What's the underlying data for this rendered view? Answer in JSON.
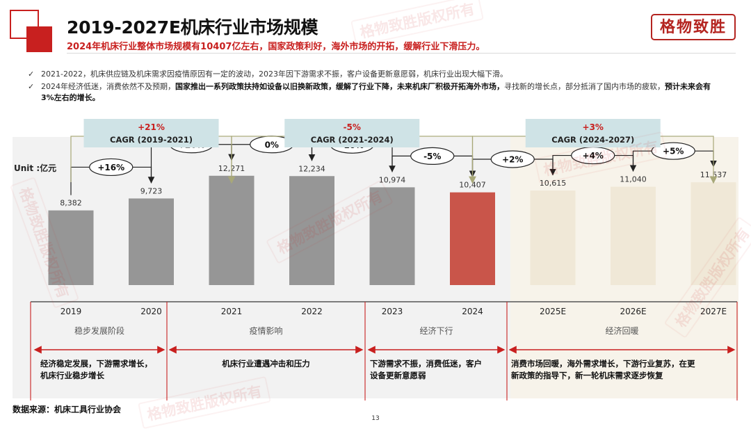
{
  "header": {
    "title": "2019-2027E机床行业市场规模",
    "subtitle": "2024年机床行业整体市场规模有10407亿左右，国家政策利好，海外市场的开拓，缓解行业下滑压力。",
    "brand_logo": "格物致胜"
  },
  "bullets": [
    {
      "icon": "check-icon",
      "text": "2021-2022，机床供应链及机床需求因疫情原因有一定的波动，2023年因下游需求不振，客户设备更新意愿弱，机床行业出现大幅下滑。"
    },
    {
      "icon": "check-icon",
      "text_pre": "2024年经济低迷，消费依然不及预期，",
      "text_bold": "国家推出一系列政策扶持如设备以旧换新政策，缓解了行业下降，未来机床厂积极开拓海外市场，",
      "text_mid": "寻找新的增长点，部分抵消了国内市场的疲软，",
      "text_bold2": "预计未来会有3%左右的增长。"
    }
  ],
  "watermark": "格物致胜版权所有",
  "chart_data": {
    "type": "bar",
    "unit_label": "Unit :亿元",
    "categories": [
      "2019",
      "2020",
      "2021",
      "2022",
      "2023",
      "2024",
      "2025E",
      "2026E",
      "2027E"
    ],
    "values": [
      8382,
      9723,
      12271,
      12234,
      10974,
      10407,
      10615,
      11040,
      11537
    ],
    "value_labels": [
      "8,382",
      "9,723",
      "12,271",
      "12,234",
      "10,974",
      "10,407",
      "10,615",
      "11,040",
      "11,537"
    ],
    "bar_colors": [
      "#969696",
      "#969696",
      "#969696",
      "#969696",
      "#969696",
      "#c9554a",
      "#f0e8d7",
      "#f0e8d7",
      "#f0e8d7"
    ],
    "yoy": [
      {
        "from": 0,
        "to": 1,
        "label": "+16%"
      },
      {
        "from": 1,
        "to": 2,
        "label": "+26%"
      },
      {
        "from": 2,
        "to": 3,
        "label": "0%"
      },
      {
        "from": 3,
        "to": 4,
        "label": "-10%"
      },
      {
        "from": 4,
        "to": 5,
        "label": "-5%"
      },
      {
        "from": 5,
        "to": 6,
        "label": "+2%"
      },
      {
        "from": 6,
        "to": 7,
        "label": "+4%"
      },
      {
        "from": 7,
        "to": 8,
        "label": "+5%"
      }
    ],
    "cagr": [
      {
        "change": "+21%",
        "label": "CAGR (2019-2021)",
        "from": 0,
        "to": 2
      },
      {
        "change": "-5%",
        "label": "CAGR (2021-2024)",
        "from": 2,
        "to": 5
      },
      {
        "change": "+3%",
        "label": "CAGR (2024-2027)",
        "from": 5,
        "to": 8
      }
    ],
    "phases": [
      {
        "name": "稳步发展阶段",
        "from": 0,
        "to": 1,
        "description": [
          "经济稳定发展，下游需求增长，",
          "机床行业稳步增长"
        ]
      },
      {
        "name": "疫情影响",
        "from": 2,
        "to": 3,
        "description": [
          "机床行业遭遇冲击和压力"
        ]
      },
      {
        "name": "经济下行",
        "from": 4,
        "to": 5,
        "description": [
          "下游需求不振，消费低迷，客户",
          "设备更新意愿弱"
        ]
      },
      {
        "name": "经济回暖",
        "from": 6,
        "to": 8,
        "description": [
          "消费市场回暖，海外需求增长，下游行业复苏，在更",
          "新政策的指导下，新一轮机床需求逐步恢复"
        ]
      }
    ],
    "colors": {
      "accent": "#c8201f",
      "cagr_box": "#cfe3e6",
      "arrow": "#b5b58a"
    }
  },
  "footer": {
    "source": "数据来源：机床工具行业协会",
    "page_number": "13"
  }
}
